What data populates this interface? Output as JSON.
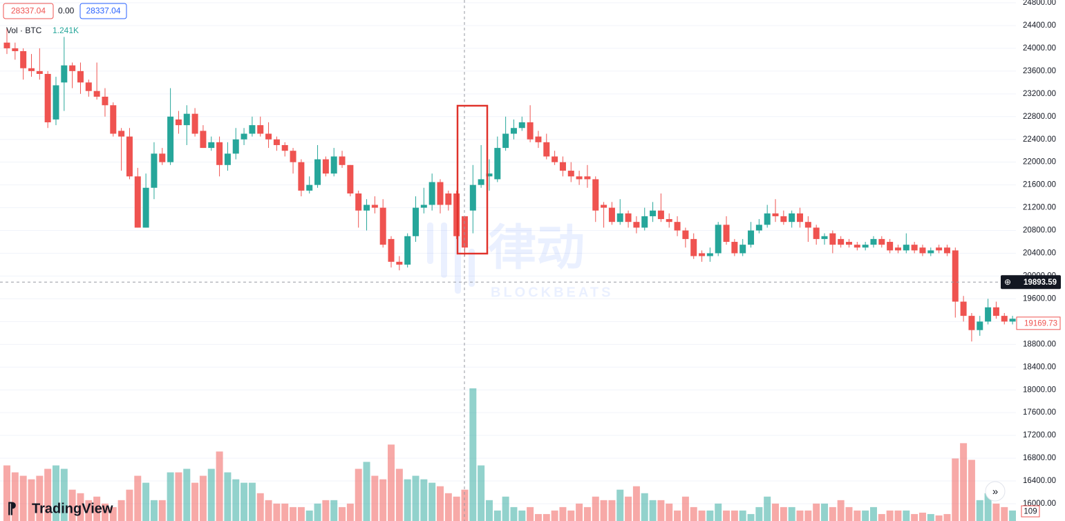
{
  "chart_data": {
    "type": "candlestick",
    "header_values": [
      "28337.04",
      "0.00",
      "28337.04"
    ],
    "volume_title": "Vol · BTC",
    "volume_readout": "1.241K",
    "watermark": [
      "律动",
      "BLOCKBEATS"
    ],
    "brand": "TradingView",
    "crosshair_price": 19893.59,
    "last_price": 19169.73,
    "up_color": "#26a69a",
    "down_color": "#ef5350",
    "grid": true,
    "ylim": [
      16000,
      24800
    ],
    "yticks": [
      {
        "value": 16000,
        "label": "16000.00"
      },
      {
        "value": 16400,
        "label": "16400.00"
      },
      {
        "value": 16800,
        "label": "16800.00"
      },
      {
        "value": 17200,
        "label": "17200.00"
      },
      {
        "value": 17600,
        "label": "17600.00"
      },
      {
        "value": 18000,
        "label": "18000.00"
      },
      {
        "value": 18400,
        "label": "18400.00"
      },
      {
        "value": 18800,
        "label": "18800.00"
      },
      {
        "value": 19200,
        "label": "19200.00"
      },
      {
        "value": 19600,
        "label": "19600.00"
      },
      {
        "value": 20000,
        "label": "20000.00"
      },
      {
        "value": 20400,
        "label": "20400.00"
      },
      {
        "value": 20800,
        "label": "20800.00"
      },
      {
        "value": 21200,
        "label": "21200.00"
      },
      {
        "value": 21600,
        "label": "21600.00"
      },
      {
        "value": 22000,
        "label": "22000.00"
      },
      {
        "value": 22400,
        "label": "22400.00"
      },
      {
        "value": 22800,
        "label": "22800.00"
      },
      {
        "value": 23200,
        "label": "23200.00"
      },
      {
        "value": 23600,
        "label": "23600.00"
      },
      {
        "value": 24000,
        "label": "24000.00"
      },
      {
        "value": 24400,
        "label": "24400.00"
      },
      {
        "value": 24800,
        "label": "24800.00"
      }
    ],
    "candles": [
      [
        24100,
        24350,
        23900,
        24000
      ],
      [
        24000,
        24100,
        23800,
        23950
      ],
      [
        23950,
        24000,
        23450,
        23650
      ],
      [
        23650,
        23900,
        23500,
        23600
      ],
      [
        23600,
        24000,
        23450,
        23550
      ],
      [
        23550,
        23600,
        22600,
        22700
      ],
      [
        22750,
        23500,
        22650,
        23350
      ],
      [
        23400,
        24200,
        22900,
        23700
      ],
      [
        23700,
        23750,
        23300,
        23600
      ],
      [
        23600,
        23750,
        23200,
        23400
      ],
      [
        23400,
        23450,
        23150,
        23250
      ],
      [
        23250,
        23750,
        23100,
        23150
      ],
      [
        23150,
        23300,
        22800,
        23000
      ],
      [
        23000,
        23050,
        22450,
        22500
      ],
      [
        22550,
        22600,
        21850,
        22450
      ],
      [
        22450,
        22600,
        21700,
        21750
      ],
      [
        21750,
        21900,
        20850,
        20850
      ],
      [
        20850,
        21800,
        20850,
        21550
      ],
      [
        21550,
        22350,
        21350,
        22150
      ],
      [
        22150,
        22250,
        21950,
        22000
      ],
      [
        22000,
        23300,
        21950,
        22800
      ],
      [
        22750,
        22900,
        22500,
        22650
      ],
      [
        22650,
        23000,
        22300,
        22850
      ],
      [
        22850,
        22950,
        22450,
        22500
      ],
      [
        22550,
        22650,
        22250,
        22250
      ],
      [
        22250,
        22450,
        22200,
        22350
      ],
      [
        22350,
        22450,
        21750,
        21950
      ],
      [
        21950,
        22350,
        21850,
        22150
      ],
      [
        22150,
        22600,
        22050,
        22400
      ],
      [
        22400,
        22600,
        22300,
        22500
      ],
      [
        22500,
        22800,
        22450,
        22650
      ],
      [
        22650,
        22800,
        22450,
        22500
      ],
      [
        22500,
        22700,
        22250,
        22400
      ],
      [
        22400,
        22450,
        22200,
        22300
      ],
      [
        22300,
        22350,
        22100,
        22200
      ],
      [
        22200,
        22250,
        21800,
        22000
      ],
      [
        22000,
        22050,
        21400,
        21500
      ],
      [
        21500,
        21750,
        21450,
        21600
      ],
      [
        21600,
        22300,
        21550,
        22050
      ],
      [
        22050,
        22100,
        21750,
        21800
      ],
      [
        21800,
        22250,
        21750,
        22100
      ],
      [
        22100,
        22200,
        21900,
        21950
      ],
      [
        21950,
        21950,
        21400,
        21450
      ],
      [
        21450,
        21500,
        20850,
        21150
      ],
      [
        21150,
        21350,
        20800,
        21250
      ],
      [
        21250,
        21400,
        21100,
        21200
      ],
      [
        21200,
        21350,
        20500,
        20550
      ],
      [
        20650,
        20700,
        20150,
        20250
      ],
      [
        20250,
        20350,
        20100,
        20200
      ],
      [
        20200,
        20750,
        20150,
        20700
      ],
      [
        20700,
        21400,
        20600,
        21200
      ],
      [
        21200,
        21550,
        21100,
        21250
      ],
      [
        21250,
        21800,
        21150,
        21650
      ],
      [
        21650,
        21700,
        21100,
        21250
      ],
      [
        21450,
        21500,
        21150,
        21250
      ],
      [
        21450,
        21500,
        20650,
        20700
      ],
      [
        21050,
        21050,
        20350,
        20500
      ],
      [
        21150,
        21950,
        20750,
        21600
      ],
      [
        21600,
        22300,
        21550,
        21700
      ],
      [
        21750,
        22050,
        21500,
        21800
      ],
      [
        21700,
        22450,
        21650,
        22250
      ],
      [
        22250,
        22800,
        22200,
        22500
      ],
      [
        22500,
        22750,
        22400,
        22600
      ],
      [
        22600,
        22800,
        22550,
        22700
      ],
      [
        22700,
        23000,
        22350,
        22400
      ],
      [
        22450,
        22550,
        22250,
        22350
      ],
      [
        22350,
        22500,
        22050,
        22100
      ],
      [
        22100,
        22200,
        21950,
        22000
      ],
      [
        22000,
        22100,
        21750,
        21850
      ],
      [
        21850,
        22000,
        21650,
        21750
      ],
      [
        21750,
        21850,
        21600,
        21700
      ],
      [
        21750,
        21950,
        21550,
        21700
      ],
      [
        21700,
        21750,
        20950,
        21150
      ],
      [
        21250,
        21300,
        20850,
        21200
      ],
      [
        21200,
        21300,
        20900,
        20950
      ],
      [
        20950,
        21350,
        20900,
        21100
      ],
      [
        21100,
        21150,
        20850,
        20950
      ],
      [
        20950,
        21050,
        20750,
        20850
      ],
      [
        20850,
        21200,
        20800,
        21050
      ],
      [
        21050,
        21300,
        20950,
        21150
      ],
      [
        21150,
        21450,
        20950,
        21000
      ],
      [
        21000,
        21100,
        20850,
        20950
      ],
      [
        20950,
        21050,
        20700,
        20800
      ],
      [
        20800,
        20850,
        20500,
        20650
      ],
      [
        20650,
        20750,
        20300,
        20350
      ],
      [
        20400,
        20450,
        20250,
        20350
      ],
      [
        20350,
        20500,
        20250,
        20400
      ],
      [
        20400,
        20950,
        20350,
        20900
      ],
      [
        20900,
        21050,
        20550,
        20600
      ],
      [
        20600,
        20650,
        20350,
        20400
      ],
      [
        20400,
        20650,
        20350,
        20550
      ],
      [
        20550,
        20950,
        20500,
        20800
      ],
      [
        20800,
        21000,
        20750,
        20900
      ],
      [
        20900,
        21250,
        20850,
        21100
      ],
      [
        21100,
        21350,
        20950,
        21050
      ],
      [
        21050,
        21150,
        20900,
        20950
      ],
      [
        20950,
        21150,
        20850,
        21100
      ],
      [
        21100,
        21200,
        20850,
        20950
      ],
      [
        20950,
        21050,
        20600,
        20850
      ],
      [
        20850,
        20900,
        20550,
        20650
      ],
      [
        20650,
        20750,
        20550,
        20700
      ],
      [
        20750,
        20800,
        20400,
        20550
      ],
      [
        20650,
        20700,
        20500,
        20550
      ],
      [
        20600,
        20650,
        20500,
        20550
      ],
      [
        20550,
        20600,
        20450,
        20500
      ],
      [
        20500,
        20600,
        20450,
        20550
      ],
      [
        20550,
        20700,
        20500,
        20650
      ],
      [
        20650,
        20700,
        20500,
        20550
      ],
      [
        20600,
        20650,
        20400,
        20450
      ],
      [
        20500,
        20550,
        20400,
        20450
      ],
      [
        20450,
        20750,
        20400,
        20550
      ],
      [
        20550,
        20600,
        20400,
        20450
      ],
      [
        20500,
        20550,
        20350,
        20400
      ],
      [
        20400,
        20500,
        20350,
        20450
      ],
      [
        20500,
        20550,
        20400,
        20450
      ],
      [
        20500,
        20550,
        20350,
        20400
      ],
      [
        20450,
        20500,
        19270,
        19550
      ],
      [
        19550,
        19650,
        19200,
        19300
      ],
      [
        19300,
        19350,
        18850,
        19050
      ],
      [
        19050,
        19300,
        18950,
        19200
      ],
      [
        19200,
        19600,
        19150,
        19450
      ],
      [
        19450,
        19550,
        19250,
        19300
      ],
      [
        19300,
        19350,
        19150,
        19200
      ],
      [
        19200,
        19300,
        19150,
        19250
      ],
      [
        19250,
        19300,
        19150,
        19169.73
      ]
    ],
    "volumes": [
      520,
      455,
      423,
      390,
      423,
      488,
      520,
      488,
      293,
      260,
      195,
      228,
      163,
      130,
      195,
      293,
      423,
      358,
      195,
      195,
      455,
      455,
      488,
      358,
      423,
      488,
      650,
      455,
      390,
      358,
      358,
      260,
      195,
      163,
      163,
      130,
      130,
      98,
      163,
      195,
      195,
      130,
      163,
      488,
      553,
      423,
      390,
      715,
      488,
      390,
      423,
      390,
      358,
      325,
      260,
      228,
      293,
      1241,
      520,
      195,
      98,
      228,
      130,
      98,
      130,
      65,
      65,
      98,
      130,
      98,
      163,
      130,
      228,
      195,
      195,
      293,
      228,
      325,
      260,
      195,
      195,
      163,
      98,
      228,
      130,
      98,
      98,
      163,
      98,
      98,
      98,
      65,
      130,
      228,
      163,
      130,
      130,
      98,
      98,
      163,
      163,
      130,
      195,
      130,
      98,
      98,
      130,
      65,
      98,
      98,
      98,
      65,
      78,
      65,
      52,
      65,
      585,
      728,
      572,
      195,
      260,
      163,
      130,
      98,
      109
    ]
  }
}
